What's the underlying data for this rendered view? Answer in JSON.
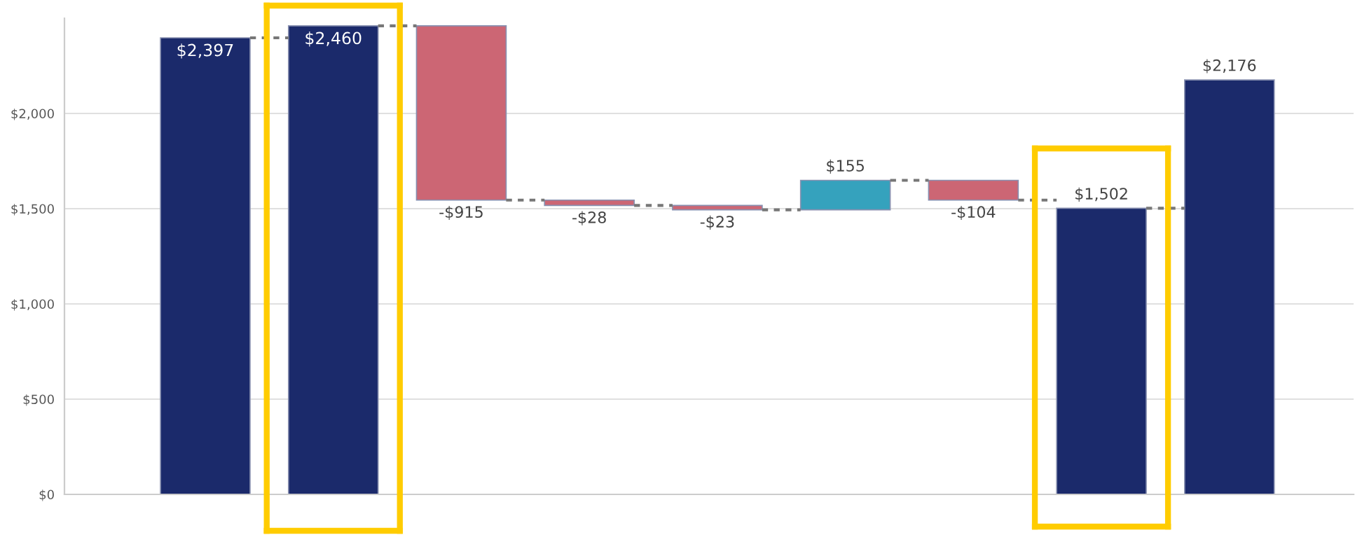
{
  "chart_data": {
    "type": "bar",
    "categories": [
      null,
      null,
      null,
      null,
      null,
      null,
      null,
      null,
      null
    ],
    "values": [
      2397,
      2460,
      -915,
      -28,
      -23,
      155,
      -104,
      1502,
      2176
    ],
    "base": [
      0,
      0,
      2460,
      1545,
      1517,
      1494,
      1649,
      0,
      0
    ],
    "colors": [
      "#1b2a6b",
      "#1b2a6b",
      "#cc6674",
      "#cc6674",
      "#cc6674",
      "#35a2bd",
      "#cc6674",
      "#1b2a6b",
      "#1b2a6b"
    ],
    "value_labels": [
      "$2,397",
      "$2,460",
      "-$915",
      "-$28",
      "-$23",
      "$155",
      "-$104",
      "$1,502",
      "$2,176"
    ],
    "ylim": [
      0,
      2500
    ],
    "yticks": [
      {
        "value": 0,
        "label": "$0"
      },
      {
        "value": 500,
        "label": "$500"
      },
      {
        "value": 1000,
        "label": "$1,000"
      },
      {
        "value": 1500,
        "label": "$1,500"
      },
      {
        "value": 2000,
        "label": "$2,000"
      }
    ],
    "grid": "y",
    "legend": false
  }
}
